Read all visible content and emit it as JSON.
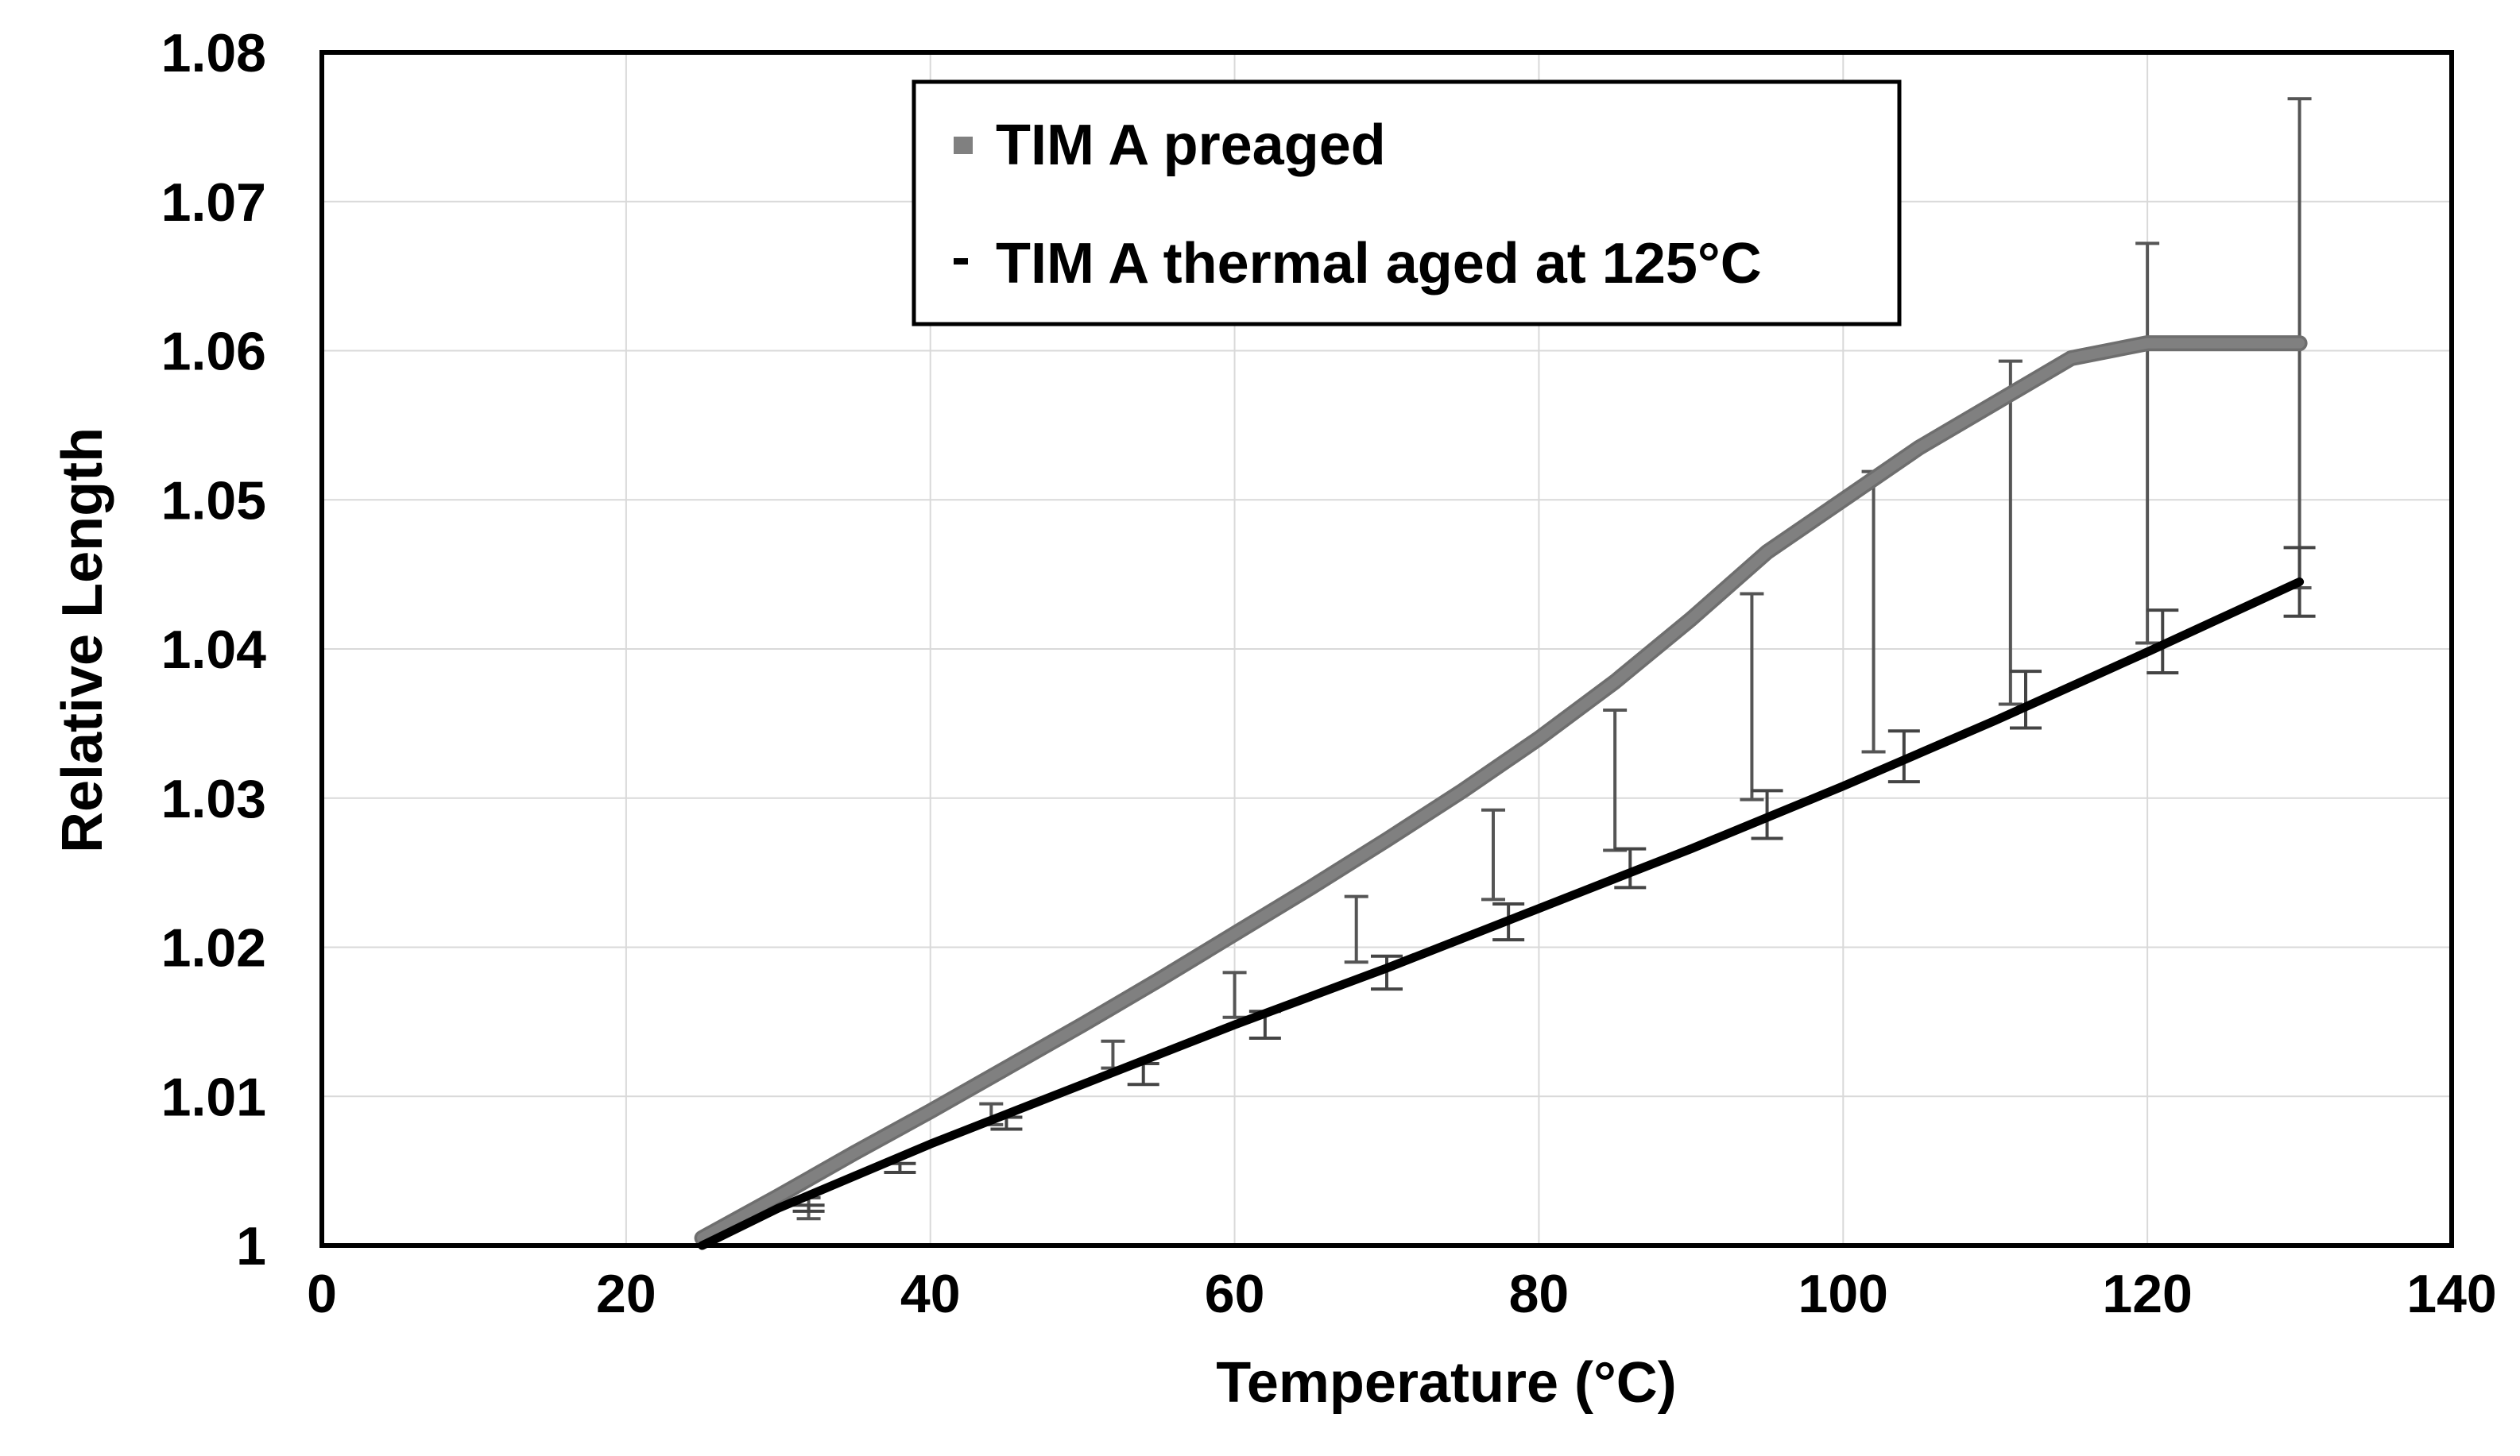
{
  "colors": {
    "background": "#ffffff",
    "grid": "#d9d9d9",
    "axis": "#000000",
    "preaged": "#808080",
    "preaged_edge": "#6e6e6e",
    "aged": "#000000",
    "errorbar_preaged": "#555555",
    "errorbar_aged": "#444444"
  },
  "chart_data": {
    "type": "line",
    "title": "",
    "xlabel": "Temperature (°C)",
    "ylabel": "Relative Length",
    "xlim": [
      0,
      140
    ],
    "ylim": [
      1.0,
      1.08
    ],
    "x_ticks": [
      0,
      20,
      40,
      60,
      80,
      100,
      120,
      140
    ],
    "y_ticks": [
      1.0,
      1.01,
      1.02,
      1.03,
      1.04,
      1.05,
      1.06,
      1.07,
      1.08
    ],
    "x_tick_labels": [
      "0",
      "20",
      "40",
      "60",
      "80",
      "100",
      "120",
      "140"
    ],
    "y_tick_labels": [
      "1",
      "1.01",
      "1.02",
      "1.03",
      "1.04",
      "1.05",
      "1.06",
      "1.07",
      "1.08"
    ],
    "grid": true,
    "legend_position": "top-center",
    "series": [
      {
        "name": "TIM A preaged",
        "legend_symbol": "square",
        "color": "#808080",
        "x": [
          25,
          30,
          35,
          40,
          45,
          50,
          55,
          60,
          65,
          70,
          75,
          80,
          85,
          90,
          95,
          100,
          105,
          110,
          115,
          120,
          125,
          130
        ],
        "values": [
          1.0005,
          1.0033,
          1.0062,
          1.009,
          1.0119,
          1.0148,
          1.0178,
          1.0209,
          1.024,
          1.0272,
          1.0305,
          1.034,
          1.0378,
          1.042,
          1.0465,
          1.05,
          1.0535,
          1.0565,
          1.0595,
          1.0605,
          1.0605,
          1.0605
        ],
        "error_x": [
          32,
          44,
          52,
          60,
          68,
          77,
          85,
          94,
          102,
          111,
          120,
          130
        ],
        "error_center": [
          1.0025,
          1.0088,
          1.0128,
          1.0168,
          1.0212,
          1.0262,
          1.0312,
          1.0368,
          1.0425,
          1.0478,
          1.0538,
          1.0605
        ],
        "error_upper": [
          1.0032,
          1.0095,
          1.0137,
          1.0183,
          1.0234,
          1.0292,
          1.0359,
          1.0437,
          1.0519,
          1.0593,
          1.0672,
          1.0769
        ],
        "error_lower": [
          1.0018,
          1.0081,
          1.0119,
          1.0153,
          1.019,
          1.0232,
          1.0265,
          1.0299,
          1.0331,
          1.0363,
          1.0404,
          1.0441
        ]
      },
      {
        "name": "TIM A thermal aged at 125°C",
        "legend_symbol": "dash",
        "color": "#000000",
        "x": [
          25,
          30,
          40,
          50,
          60,
          70,
          80,
          90,
          100,
          110,
          120,
          130
        ],
        "values": [
          1.0,
          1.0025,
          1.0068,
          1.0108,
          1.0148,
          1.0186,
          1.0226,
          1.0266,
          1.0308,
          1.0352,
          1.0398,
          1.0445
        ],
        "error_x": [
          32,
          38,
          45,
          54,
          62,
          70,
          78,
          86,
          95,
          104,
          112,
          121,
          130
        ],
        "error_center": [
          1.0025,
          1.0052,
          1.0082,
          1.0115,
          1.0148,
          1.0183,
          1.0217,
          1.0253,
          1.0289,
          1.0328,
          1.0366,
          1.0405,
          1.0445
        ],
        "error_upper": [
          1.0027,
          1.0055,
          1.0086,
          1.0122,
          1.0157,
          1.0194,
          1.0229,
          1.0266,
          1.0305,
          1.0345,
          1.0385,
          1.0426,
          1.0468
        ],
        "error_lower": [
          1.0023,
          1.0049,
          1.0078,
          1.0108,
          1.0139,
          1.0172,
          1.0205,
          1.024,
          1.0273,
          1.0311,
          1.0347,
          1.0384,
          1.0422
        ]
      }
    ]
  }
}
